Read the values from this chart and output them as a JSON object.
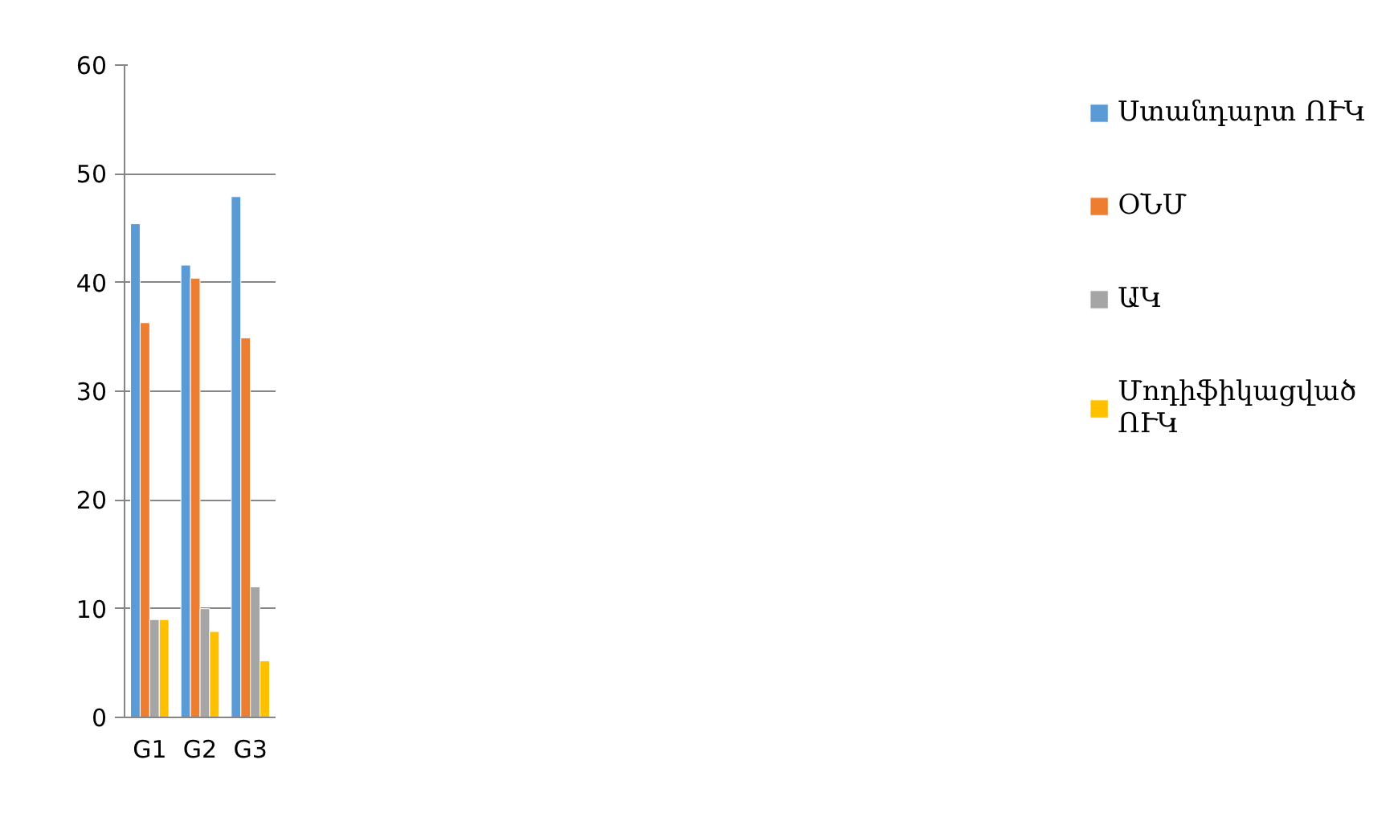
{
  "chart_data": {
    "type": "bar",
    "categories": [
      "G1",
      "G2",
      "G3"
    ],
    "series": [
      {
        "name": "Ստանդարտ ՈՒԿ",
        "color": "#5b9bd5",
        "values": [
          45.4,
          41.6,
          47.9
        ]
      },
      {
        "name": "ՕՆՄ",
        "color": "#ed7d31",
        "values": [
          36.3,
          40.4,
          34.9
        ]
      },
      {
        "name": "ԱԿ",
        "color": "#a5a5a5",
        "values": [
          9,
          10,
          12
        ]
      },
      {
        "name": "Մոդիֆիկացված ՈՒԿ",
        "color": "#ffc000",
        "values": [
          9,
          7.9,
          5.2
        ]
      }
    ],
    "ylim": [
      0,
      60
    ],
    "yticks": [
      0,
      10,
      20,
      30,
      40,
      50,
      60
    ],
    "grid": "y",
    "legend": "right"
  }
}
